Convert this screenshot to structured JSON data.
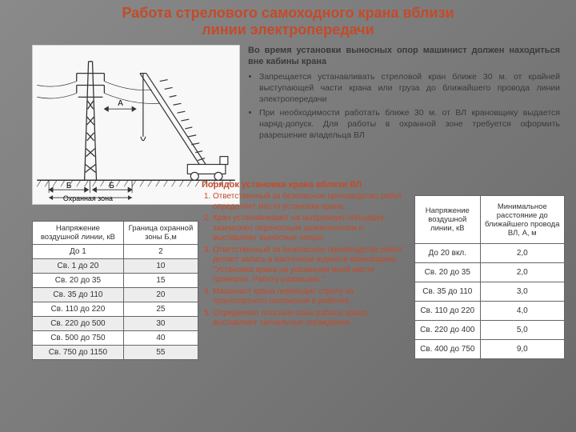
{
  "title_color": "#c44b2a",
  "title_fontsize": 18,
  "title_line1": "Работа стрелового самоходного крана вблизи",
  "title_line2": "линии электропередачи",
  "intro": {
    "lead": "Во время установки выносных опор машинист должен находиться вне кабины крана",
    "bullets": [
      "Запрещается устанавливать стреловой кран ближе 30 м. от крайней выступающей части крана или груза до ближайшего провода линии электропередачи",
      "При необходимости работать ближе 30 м. от ВЛ крановщику выдается наряд-допуск. Для работы в охранной зоне требуется оформить разрешение владельца ВЛ"
    ]
  },
  "order": {
    "title": "Порядок установки крана вблизи ВЛ",
    "items": [
      "Ответственный за безопасное производство работ определяет место установки крана.",
      "Кран устанавливают на выбранную площадку, заземляют переносным заземлителем и выставляют выносные опоры.",
      "Ответственный за безопасное производство работ делает запись в вахтенном журнале крановщика: \"Установка крана на указанном мной месте проверил. Работу разрешаю.\"",
      "Машинист крана переводит стрелу из транспортного положения в рабочее.",
      "Определяют опасные зоны работы крана, выставляют сигнальные ограждения."
    ]
  },
  "table_left": {
    "columns": [
      "Напряжение воздушной линии, кВ",
      "Граница охранной зоны Б,м"
    ],
    "rows": [
      [
        "До 1",
        "2"
      ],
      [
        "Св. 1 до 20",
        "10"
      ],
      [
        "Св. 20 до 35",
        "15"
      ],
      [
        "Св. 35 до 110",
        "20"
      ],
      [
        "Св. 110 до 220",
        "25"
      ],
      [
        "Св. 220 до 500",
        "30"
      ],
      [
        "Св. 500 до 750",
        "40"
      ],
      [
        "Св. 750 до 1150",
        "55"
      ]
    ]
  },
  "table_right": {
    "columns": [
      "Напряжение воздушной линии, кВ",
      "Минимальное расстояние до ближайшего провода ВЛ, А, м"
    ],
    "rows": [
      [
        "До 20 вкл.",
        "2,0"
      ],
      [
        "Св. 20 до 35",
        "2,0"
      ],
      [
        "Св. 35 до 110",
        "3,0"
      ],
      [
        "Св. 110 до 220",
        "4,0"
      ],
      [
        "Св. 220 до 400",
        "5,0"
      ],
      [
        "Св. 400 до 750",
        "9,0"
      ]
    ]
  },
  "diagram": {
    "label_A": "А",
    "label_B1": "Б",
    "label_B2": "Б",
    "zone": "Охранная зона"
  }
}
